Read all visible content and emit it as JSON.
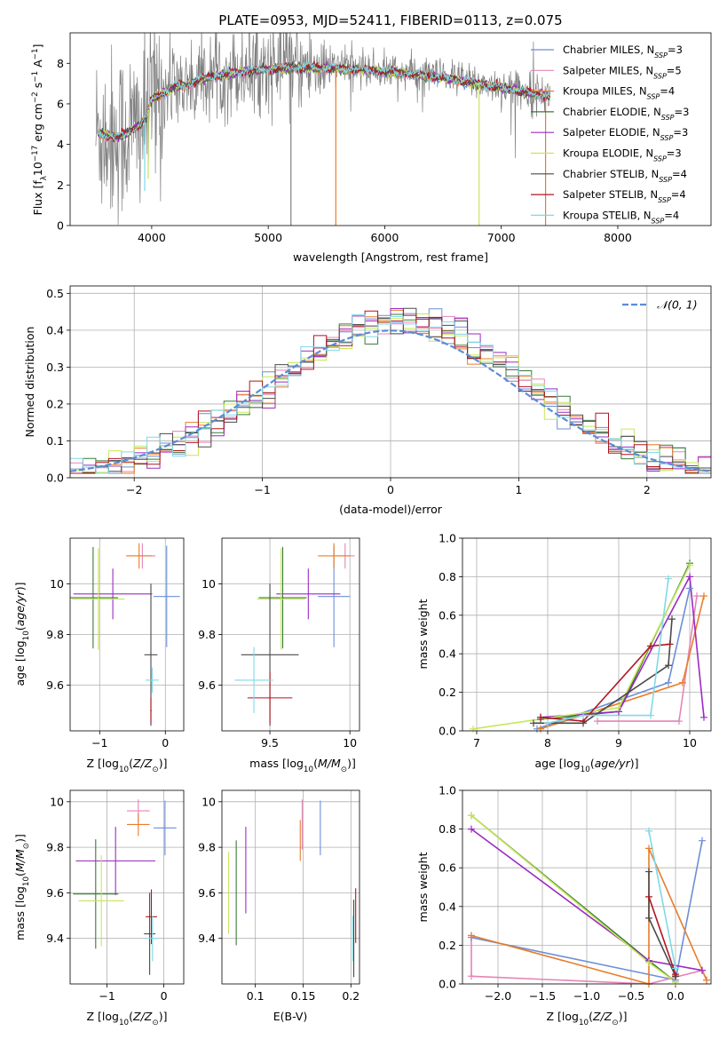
{
  "figure_title": "PLATE=0953, MJD=52411, FIBERID=0113, z=0.075",
  "colors": {
    "Chabrier MILES": "#6b8fd6",
    "Salpeter MILES": "#e584b8",
    "Kroupa MILES": "#e87d2a",
    "Chabrier ELODIE": "#3a7a35",
    "Salpeter ELODIE": "#9a2bc2",
    "Kroupa ELODIE": "#c7e65a",
    "Chabrier STELIB": "#4a4a4a",
    "Salpeter STELIB": "#b01520",
    "Kroupa STELIB": "#7fd9e6",
    "data": "#808080",
    "normal": "#5b8bd6"
  },
  "chart_data": [
    {
      "id": "spectrum",
      "type": "line",
      "title": "PLATE=0953, MJD=52411, FIBERID=0113, z=0.075",
      "xlabel": "wavelength [Angstrom, rest frame]",
      "ylabel": "Flux [f_λ 10^-17 erg cm^-2 s^-1 A^-1]",
      "xlim": [
        3300,
        8800
      ],
      "ylim": [
        0,
        9.5
      ],
      "xticks": [
        4000,
        5000,
        6000,
        7000,
        8000
      ],
      "yticks": [
        0,
        2,
        4,
        6,
        8
      ],
      "grid": false,
      "legend_position": "right",
      "legend": [
        {
          "key": "Chabrier MILES",
          "label": "Chabrier MILES, N",
          "sub": "SSP",
          "suffix": "=3"
        },
        {
          "key": "Salpeter MILES",
          "label": "Salpeter MILES, N",
          "sub": "SSP",
          "suffix": "=5"
        },
        {
          "key": "Kroupa MILES",
          "label": "Kroupa MILES, N",
          "sub": "SSP",
          "suffix": "=4"
        },
        {
          "key": "Chabrier ELODIE",
          "label": "Chabrier ELODIE, N",
          "sub": "SSP",
          "suffix": "=3"
        },
        {
          "key": "Salpeter ELODIE",
          "label": "Salpeter ELODIE, N",
          "sub": "SSP",
          "suffix": "=3"
        },
        {
          "key": "Kroupa ELODIE",
          "label": "Kroupa ELODIE, N",
          "sub": "SSP",
          "suffix": "=3"
        },
        {
          "key": "Chabrier STELIB",
          "label": "Chabrier STELIB, N",
          "sub": "SSP",
          "suffix": "=4"
        },
        {
          "key": "Salpeter STELIB",
          "label": "Salpeter STELIB, N",
          "sub": "SSP",
          "suffix": "=4"
        },
        {
          "key": "Kroupa STELIB",
          "label": "Kroupa STELIB, N",
          "sub": "SSP",
          "suffix": "=4"
        }
      ],
      "continuum": {
        "wavelength": [
          3550,
          3700,
          3800,
          3900,
          3950,
          4000,
          4100,
          4200,
          4300,
          4500,
          4700,
          5000,
          5300,
          5600,
          5900,
          6200,
          6500,
          6800,
          7000,
          7200,
          7400,
          7600,
          7800,
          8000,
          8200,
          8400,
          8600,
          8800
        ],
        "flux": [
          4.6,
          4.4,
          4.6,
          5.0,
          5.3,
          6.3,
          6.6,
          6.9,
          7.0,
          7.4,
          7.6,
          7.8,
          7.85,
          7.8,
          7.7,
          7.55,
          7.35,
          7.05,
          6.85,
          6.65,
          6.45,
          6.25,
          6.05,
          5.9,
          5.75,
          5.6,
          5.45,
          5.35
        ]
      }
    },
    {
      "id": "residuals",
      "type": "line",
      "xlabel": "(data-model)/error",
      "ylabel": "Normed distribution",
      "xlim": [
        -2.5,
        2.5
      ],
      "ylim": [
        0,
        0.52
      ],
      "xticks": [
        -2,
        -1,
        0,
        1,
        2
      ],
      "yticks": [
        0.0,
        0.1,
        0.2,
        0.3,
        0.4,
        0.5
      ],
      "grid": true,
      "legend_position": "top-right",
      "legend": [
        {
          "label": "𝒩(0, 1)"
        }
      ],
      "normal": {
        "mu": 0,
        "sigma": 1
      }
    },
    {
      "id": "age_vs_Z",
      "type": "scatter",
      "xlabel": "Z [log10(Z/Z⊙)]",
      "ylabel": "age  [log10(age/yr)]",
      "xlim": [
        -1.45,
        0.28
      ],
      "ylim": [
        9.42,
        10.18
      ],
      "xticks": [
        -1,
        0
      ],
      "yticks": [
        9.6,
        9.8,
        10.0
      ],
      "grid": true,
      "points": [
        {
          "key": "Chabrier MILES",
          "x": 0.02,
          "y": 9.95,
          "xerr": 0.2,
          "yerr": 0.2
        },
        {
          "key": "Salpeter MILES",
          "x": -0.35,
          "y": 10.11,
          "xerr": 0.2,
          "yerr": 0.05
        },
        {
          "key": "Kroupa MILES",
          "x": -0.4,
          "y": 10.11,
          "xerr": 0.2,
          "yerr": 0.05
        },
        {
          "key": "Chabrier ELODIE",
          "x": -1.1,
          "y": 9.945,
          "xerr": 0.38,
          "yerr": 0.2
        },
        {
          "key": "Salpeter ELODIE",
          "x": -0.8,
          "y": 9.96,
          "xerr": 0.6,
          "yerr": 0.1
        },
        {
          "key": "Kroupa ELODIE",
          "x": -1.02,
          "y": 9.94,
          "xerr": 0.4,
          "yerr": 0.2
        },
        {
          "key": "Chabrier STELIB",
          "x": -0.22,
          "y": 9.72,
          "xerr": 0.1,
          "yerr": 0.28
        },
        {
          "key": "Salpeter STELIB",
          "x": -0.22,
          "y": 9.5,
          "xerr": 0.01,
          "yerr": 0.05
        },
        {
          "key": "Kroupa STELIB",
          "x": -0.2,
          "y": 9.62,
          "xerr": 0.1,
          "yerr": 0.05
        }
      ]
    },
    {
      "id": "age_vs_mass",
      "type": "scatter",
      "xlabel": "mass [log10(M/M⊙)]",
      "ylabel": "",
      "xlim": [
        9.2,
        10.06
      ],
      "ylim": [
        9.42,
        10.18
      ],
      "xticks": [
        9.5,
        10.0
      ],
      "yticks": [
        9.6,
        9.8,
        10.0
      ],
      "grid": true,
      "points": [
        {
          "key": "Chabrier MILES",
          "x": 9.9,
          "y": 9.95,
          "xerr": 0.1,
          "yerr": 0.2
        },
        {
          "key": "Salpeter MILES",
          "x": 9.97,
          "y": 10.11,
          "xerr": 0.06,
          "yerr": 0.05
        },
        {
          "key": "Kroupa MILES",
          "x": 9.9,
          "y": 10.11,
          "xerr": 0.1,
          "yerr": 0.05
        },
        {
          "key": "Chabrier ELODIE",
          "x": 9.58,
          "y": 9.945,
          "xerr": 0.15,
          "yerr": 0.2
        },
        {
          "key": "Salpeter ELODIE",
          "x": 9.74,
          "y": 9.96,
          "xerr": 0.2,
          "yerr": 0.1
        },
        {
          "key": "Kroupa ELODIE",
          "x": 9.57,
          "y": 9.94,
          "xerr": 0.15,
          "yerr": 0.2
        },
        {
          "key": "Chabrier STELIB",
          "x": 9.5,
          "y": 9.72,
          "xerr": 0.18,
          "yerr": 0.28
        },
        {
          "key": "Salpeter STELIB",
          "x": 9.5,
          "y": 9.55,
          "xerr": 0.14,
          "yerr": 0.1
        },
        {
          "key": "Kroupa STELIB",
          "x": 9.4,
          "y": 9.62,
          "xerr": 0.12,
          "yerr": 0.13
        }
      ]
    },
    {
      "id": "mass_weight_vs_age",
      "type": "line",
      "xlabel": "age  [log10(age/yr)]",
      "ylabel": "mass weight",
      "xlim": [
        6.8,
        10.3
      ],
      "ylim": [
        0,
        1.0
      ],
      "xticks": [
        7,
        8,
        9,
        10
      ],
      "yticks": [
        0.0,
        0.2,
        0.4,
        0.6,
        0.8,
        1.0
      ],
      "grid": true,
      "series": [
        {
          "key": "Chabrier MILES",
          "x": [
            7.85,
            9.7,
            10.0
          ],
          "y": [
            0.01,
            0.25,
            0.74
          ]
        },
        {
          "key": "Salpeter MILES",
          "x": [
            8.7,
            9.85,
            10.1
          ],
          "y": [
            0.05,
            0.05,
            0.7
          ]
        },
        {
          "key": "Kroupa MILES",
          "x": [
            7.9,
            9.9,
            10.2
          ],
          "y": [
            0.01,
            0.25,
            0.7
          ]
        },
        {
          "key": "Chabrier ELODIE",
          "x": [
            7.9,
            9.0,
            10.0
          ],
          "y": [
            0.06,
            0.1,
            0.87
          ]
        },
        {
          "key": "Salpeter ELODIE",
          "x": [
            7.9,
            9.0,
            10.0,
            10.2
          ],
          "y": [
            0.07,
            0.1,
            0.8,
            0.07
          ]
        },
        {
          "key": "Kroupa ELODIE",
          "x": [
            6.95,
            9.0,
            10.0
          ],
          "y": [
            0.01,
            0.12,
            0.86
          ]
        },
        {
          "key": "Chabrier STELIB",
          "x": [
            7.8,
            8.5,
            9.7,
            9.75
          ],
          "y": [
            0.04,
            0.04,
            0.34,
            0.58
          ]
        },
        {
          "key": "Salpeter STELIB",
          "x": [
            7.9,
            8.5,
            9.45,
            9.72
          ],
          "y": [
            0.07,
            0.05,
            0.44,
            0.45
          ]
        },
        {
          "key": "Kroupa STELIB",
          "x": [
            8.0,
            8.5,
            9.45,
            9.7
          ],
          "y": [
            0.04,
            0.08,
            0.08,
            0.79
          ]
        }
      ]
    },
    {
      "id": "mass_vs_Z",
      "type": "scatter",
      "xlabel": "Z [log10(Z/Z⊙)]",
      "ylabel": "mass [log10(M/M⊙)]",
      "xlim": [
        -1.65,
        0.35
      ],
      "ylim": [
        9.2,
        10.05
      ],
      "xticks": [
        -1,
        0
      ],
      "yticks": [
        9.4,
        9.6,
        9.8,
        10.0
      ],
      "grid": true,
      "points": [
        {
          "key": "Chabrier MILES",
          "x": 0.02,
          "y": 9.885,
          "xerr": 0.2,
          "yerr": 0.12
        },
        {
          "key": "Salpeter MILES",
          "x": -0.45,
          "y": 9.96,
          "xerr": 0.2,
          "yerr": 0.05
        },
        {
          "key": "Kroupa MILES",
          "x": -0.45,
          "y": 9.9,
          "xerr": 0.2,
          "yerr": 0.05
        },
        {
          "key": "Chabrier ELODIE",
          "x": -1.2,
          "y": 9.595,
          "xerr": 0.4,
          "yerr": 0.24
        },
        {
          "key": "Salpeter ELODIE",
          "x": -0.85,
          "y": 9.74,
          "xerr": 0.7,
          "yerr": 0.15
        },
        {
          "key": "Kroupa ELODIE",
          "x": -1.1,
          "y": 9.565,
          "xerr": 0.4,
          "yerr": 0.2
        },
        {
          "key": "Chabrier STELIB",
          "x": -0.25,
          "y": 9.42,
          "xerr": 0.1,
          "yerr": 0.18
        },
        {
          "key": "Salpeter STELIB",
          "x": -0.22,
          "y": 9.495,
          "xerr": 0.1,
          "yerr": 0.12
        },
        {
          "key": "Kroupa STELIB",
          "x": -0.2,
          "y": 9.4,
          "xerr": 0.1,
          "yerr": 0.1
        }
      ]
    },
    {
      "id": "mass_vs_ebv",
      "type": "scatter",
      "xlabel": "E(B-V)",
      "ylabel": "",
      "xlim": [
        0.065,
        0.209
      ],
      "ylim": [
        9.2,
        10.05
      ],
      "xticks": [
        0.1,
        0.15,
        0.2
      ],
      "yticks": [
        9.4,
        9.6,
        9.8,
        10.0
      ],
      "grid": true,
      "points": [
        {
          "key": "Chabrier MILES",
          "x": 0.168,
          "y": 9.885,
          "yerr": 0.12
        },
        {
          "key": "Salpeter MILES",
          "x": 0.149,
          "y": 9.9,
          "yerr": 0.11
        },
        {
          "key": "Kroupa MILES",
          "x": 0.147,
          "y": 9.83,
          "yerr": 0.09
        },
        {
          "key": "Chabrier ELODIE",
          "x": 0.08,
          "y": 9.6,
          "yerr": 0.23
        },
        {
          "key": "Salpeter ELODIE",
          "x": 0.09,
          "y": 9.7,
          "yerr": 0.19
        },
        {
          "key": "Kroupa ELODIE",
          "x": 0.072,
          "y": 9.6,
          "yerr": 0.18
        },
        {
          "key": "Chabrier STELIB",
          "x": 0.203,
          "y": 9.4,
          "yerr": 0.17
        },
        {
          "key": "Salpeter STELIB",
          "x": 0.205,
          "y": 9.5,
          "yerr": 0.12
        },
        {
          "key": "Kroupa STELIB",
          "x": 0.202,
          "y": 9.4,
          "yerr": 0.1
        }
      ]
    },
    {
      "id": "mass_weight_vs_Z",
      "type": "line",
      "xlabel": "Z [log10(Z/Z⊙)]",
      "ylabel": "mass weight",
      "xlim": [
        -2.4,
        0.4
      ],
      "ylim": [
        0,
        1.0
      ],
      "xticks": [
        -2.0,
        -1.5,
        -1.0,
        -0.5,
        0.0,
        0.5
      ],
      "yticks": [
        0.0,
        0.2,
        0.4,
        0.6,
        0.8,
        1.0
      ],
      "grid": true,
      "series": [
        {
          "key": "Chabrier MILES",
          "x": [
            -2.3,
            0.0,
            0.3
          ],
          "y": [
            0.24,
            0.02,
            0.74
          ]
        },
        {
          "key": "Salpeter MILES",
          "x": [
            -2.3,
            -2.3,
            -0.3,
            0.3,
            0.35
          ],
          "y": [
            0.25,
            0.04,
            0.0,
            0.07,
            0.02
          ]
        },
        {
          "key": "Kroupa MILES",
          "x": [
            -2.3,
            -0.3,
            -0.3,
            0.35
          ],
          "y": [
            0.25,
            0.0,
            0.7,
            0.02
          ]
        },
        {
          "key": "Chabrier ELODIE",
          "x": [
            -2.3,
            -0.3,
            0.0
          ],
          "y": [
            0.87,
            0.12,
            0.01
          ]
        },
        {
          "key": "Salpeter ELODIE",
          "x": [
            -2.3,
            -0.3,
            0.3
          ],
          "y": [
            0.8,
            0.12,
            0.07
          ]
        },
        {
          "key": "Kroupa ELODIE",
          "x": [
            -2.3,
            -0.3,
            0.0
          ],
          "y": [
            0.87,
            0.11,
            0.01
          ]
        },
        {
          "key": "Chabrier STELIB",
          "x": [
            -0.3,
            -0.3,
            0.0,
            0.0
          ],
          "y": [
            0.58,
            0.34,
            0.04,
            0.04
          ]
        },
        {
          "key": "Salpeter STELIB",
          "x": [
            -0.3,
            0.0
          ],
          "y": [
            0.45,
            0.05
          ]
        },
        {
          "key": "Kroupa STELIB",
          "x": [
            -0.3,
            0.0
          ],
          "y": [
            0.79,
            0.08
          ]
        }
      ]
    }
  ]
}
